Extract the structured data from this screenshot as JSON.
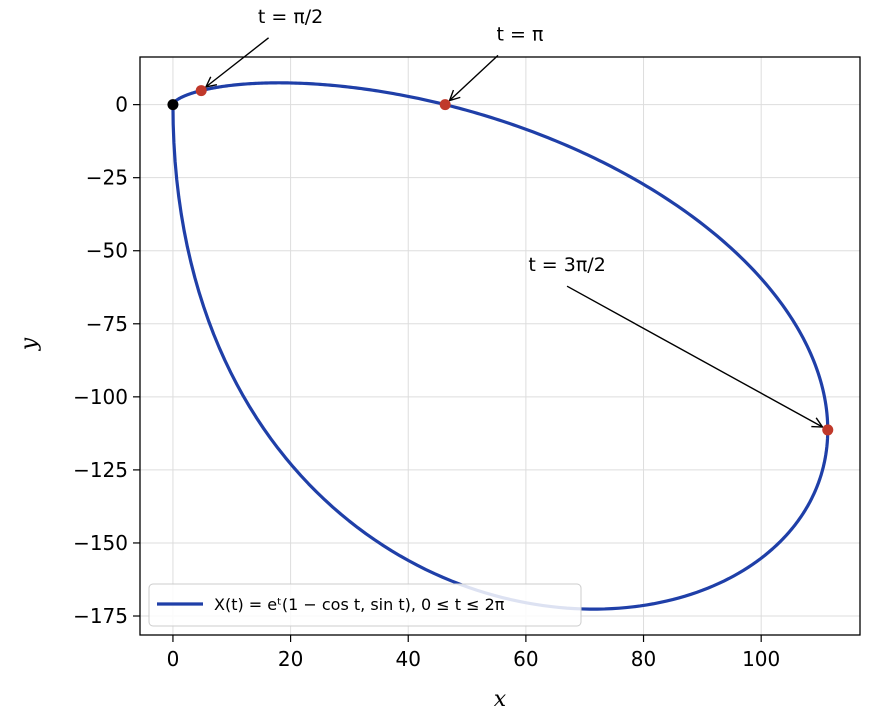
{
  "chart_data": {
    "type": "line",
    "title": "",
    "xlabel": "x",
    "ylabel": "y",
    "xlim": [
      -5.6,
      116.8
    ],
    "ylim": [
      -181.5,
      16.3
    ],
    "xticks": [
      0,
      20,
      40,
      60,
      80,
      100
    ],
    "yticks": [
      0,
      -25,
      -50,
      -75,
      -100,
      -125,
      -150,
      -175
    ],
    "xtick_labels": [
      "0",
      "20",
      "40",
      "60",
      "80",
      "100"
    ],
    "ytick_labels": [
      "0",
      "−25",
      "−50",
      "−75",
      "−100",
      "−125",
      "−150",
      "−175"
    ],
    "grid": true,
    "legend_position": "lower-left",
    "series": [
      {
        "name": "X(t) = eᵗ(1 − cos t,  sin t), 0 ≤ t ≤ 2π",
        "expression": "x = e^t (1 - cos t), y = e^t sin t",
        "t_range": [
          0,
          6.2832
        ],
        "color": "#1f3fa8"
      }
    ],
    "points": [
      {
        "label": "",
        "t": 0,
        "x": 0,
        "y": 0,
        "color": "#000000"
      },
      {
        "label": "t = π/2",
        "t": 1.5708,
        "x": 4.81,
        "y": 4.81,
        "color": "#c0392b"
      },
      {
        "label": "t = π",
        "t": 3.1416,
        "x": 46.28,
        "y": 0,
        "color": "#c0392b"
      },
      {
        "label": "t = 3π/2",
        "t": 4.7124,
        "x": 111.32,
        "y": -111.32,
        "color": "#c0392b"
      }
    ],
    "annotations": [
      {
        "text": "t = π/2",
        "text_at": [
          20,
          28
        ],
        "arrow_to": [
          4.81,
          4.81
        ]
      },
      {
        "text": "t = π",
        "text_at": [
          59,
          22
        ],
        "arrow_to": [
          46.28,
          0
        ]
      },
      {
        "text": "t = 3π/2",
        "text_at": [
          67,
          -57
        ],
        "arrow_to": [
          111.32,
          -111.32
        ]
      }
    ]
  }
}
